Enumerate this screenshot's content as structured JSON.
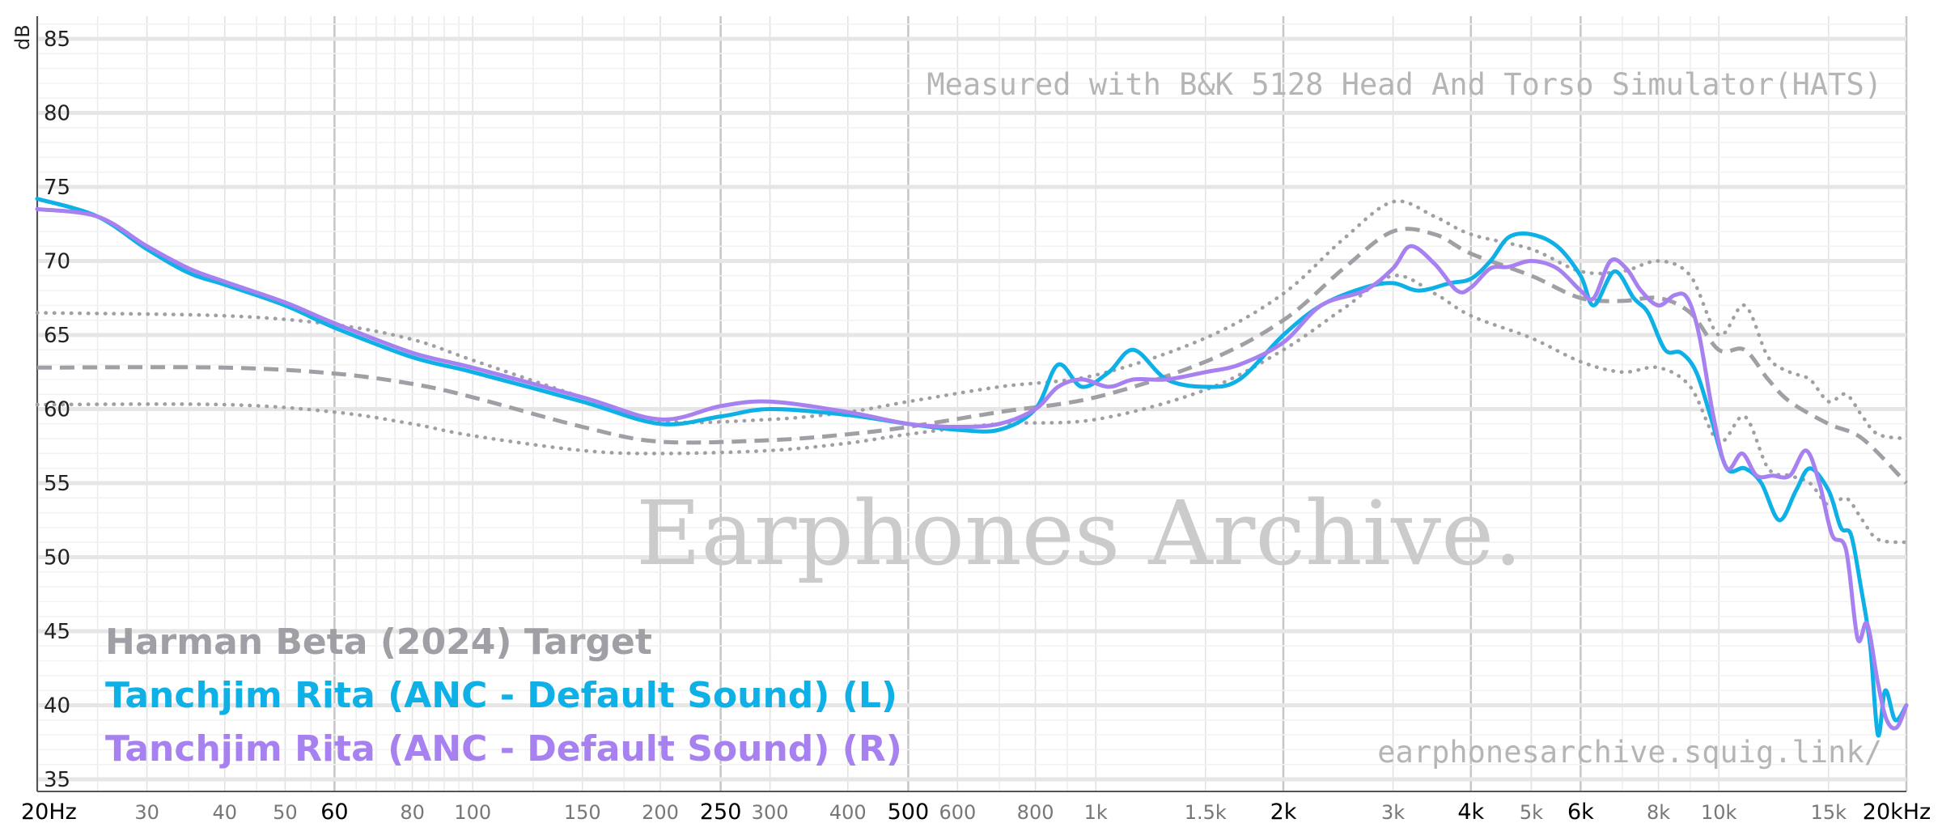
{
  "chart_data": {
    "type": "line",
    "ylabel": "dB",
    "ylim": [
      35,
      86
    ],
    "xlim": [
      20,
      20000
    ],
    "x_scale": "log",
    "grid": true,
    "legend_position": "bottom-left",
    "y_ticks": [
      "35",
      "40",
      "45",
      "50",
      "55",
      "60",
      "65",
      "70",
      "75",
      "80",
      "85"
    ],
    "y_tick_values": [
      35,
      40,
      45,
      50,
      55,
      60,
      65,
      70,
      75,
      80,
      85
    ],
    "x_ticks": [
      {
        "v": 20,
        "label": "20Hz",
        "major": true
      },
      {
        "v": 30,
        "label": "30",
        "major": false
      },
      {
        "v": 40,
        "label": "40",
        "major": false
      },
      {
        "v": 50,
        "label": "50",
        "major": false
      },
      {
        "v": 60,
        "label": "60",
        "major": true
      },
      {
        "v": 80,
        "label": "80",
        "major": false
      },
      {
        "v": 100,
        "label": "100",
        "major": false
      },
      {
        "v": 150,
        "label": "150",
        "major": false
      },
      {
        "v": 200,
        "label": "200",
        "major": false
      },
      {
        "v": 250,
        "label": "250",
        "major": true
      },
      {
        "v": 300,
        "label": "300",
        "major": false
      },
      {
        "v": 400,
        "label": "400",
        "major": false
      },
      {
        "v": 500,
        "label": "500",
        "major": true
      },
      {
        "v": 600,
        "label": "600",
        "major": false
      },
      {
        "v": 800,
        "label": "800",
        "major": false
      },
      {
        "v": 1000,
        "label": "1k",
        "major": false
      },
      {
        "v": 1500,
        "label": "1.5k",
        "major": false
      },
      {
        "v": 2000,
        "label": "2k",
        "major": true
      },
      {
        "v": 3000,
        "label": "3k",
        "major": false
      },
      {
        "v": 4000,
        "label": "4k",
        "major": true
      },
      {
        "v": 5000,
        "label": "5k",
        "major": false
      },
      {
        "v": 6000,
        "label": "6k",
        "major": true
      },
      {
        "v": 8000,
        "label": "8k",
        "major": false
      },
      {
        "v": 10000,
        "label": "10k",
        "major": false
      },
      {
        "v": 15000,
        "label": "15k",
        "major": false
      },
      {
        "v": 20000,
        "label": "20kHz",
        "major": true
      }
    ],
    "annotations": {
      "measurement_note": "Measured with B&K 5128 Head And Torso Simulator(HATS)",
      "watermark": "Earphones Archive.",
      "site": "earphonesarchive.squig.link/"
    },
    "series": [
      {
        "name": "Harman Beta (2024) Target",
        "color": "#a09fa5",
        "style": "dashed",
        "x": [
          20,
          40,
          60,
          80,
          100,
          150,
          200,
          300,
          400,
          500,
          700,
          1000,
          1500,
          2000,
          2500,
          3000,
          3500,
          4000,
          5000,
          6000,
          7000,
          8000,
          9000,
          10000,
          11000,
          12000,
          13000,
          15000,
          17000,
          20000
        ],
        "y": [
          62.8,
          62.8,
          62.4,
          61.7,
          60.8,
          58.8,
          57.8,
          57.9,
          58.3,
          58.8,
          59.8,
          60.8,
          63.2,
          66.0,
          69.5,
          72.0,
          71.8,
          70.5,
          69.0,
          67.5,
          67.3,
          67.5,
          66.5,
          64.0,
          64.0,
          62.0,
          60.5,
          59.0,
          58.0,
          55.0
        ]
      },
      {
        "name": "",
        "color": "#a09fa5",
        "style": "dotted",
        "x": [
          20,
          40,
          60,
          80,
          100,
          150,
          200,
          300,
          400,
          500,
          700,
          1000,
          1500,
          2000,
          2500,
          3000,
          3500,
          4000,
          5000,
          6000,
          7000,
          8000,
          9000,
          10000,
          11000,
          12000,
          13000,
          14000,
          15000,
          16000,
          17000,
          18000,
          20000
        ],
        "y": [
          66.5,
          66.3,
          65.7,
          64.7,
          63.3,
          60.8,
          59.2,
          59.3,
          59.8,
          60.5,
          61.5,
          62.3,
          64.8,
          67.8,
          71.5,
          74.0,
          73.0,
          71.8,
          70.8,
          69.3,
          69.3,
          70.0,
          69.0,
          65.0,
          67.0,
          63.5,
          62.5,
          62.0,
          60.5,
          61.0,
          59.5,
          58.3,
          58.0
        ]
      },
      {
        "name": "",
        "color": "#a09fa5",
        "style": "dotted",
        "x": [
          20,
          40,
          60,
          80,
          100,
          150,
          200,
          300,
          400,
          500,
          700,
          1000,
          1500,
          2000,
          2500,
          3000,
          3500,
          4000,
          5000,
          6000,
          7000,
          8000,
          9000,
          10000,
          11000,
          12000,
          13000,
          14000,
          15000,
          16000,
          17000,
          18000,
          20000
        ],
        "y": [
          60.3,
          60.3,
          59.8,
          59.0,
          58.2,
          57.2,
          57.0,
          57.2,
          57.7,
          58.3,
          59.0,
          59.3,
          61.3,
          64.0,
          66.8,
          69.0,
          67.8,
          66.3,
          64.8,
          63.2,
          62.5,
          62.8,
          61.5,
          57.8,
          59.5,
          56.0,
          55.5,
          55.0,
          53.5,
          54.0,
          52.5,
          51.2,
          51.0
        ]
      },
      {
        "name": "Tanchjim Rita (ANC - Default Sound) (L)",
        "color": "#0eb0e6",
        "style": "solid",
        "x": [
          20,
          25,
          30,
          35,
          40,
          50,
          60,
          80,
          100,
          150,
          200,
          250,
          300,
          400,
          500,
          600,
          700,
          800,
          870,
          950,
          1050,
          1150,
          1300,
          1500,
          1700,
          2000,
          2300,
          2700,
          3000,
          3300,
          3700,
          4000,
          4300,
          4600,
          5000,
          5500,
          6000,
          6300,
          6800,
          7300,
          7700,
          8200,
          8700,
          9200,
          9700,
          10300,
          11000,
          11700,
          12500,
          13300,
          14000,
          15000,
          15700,
          16300,
          16900,
          17500,
          18000,
          18500,
          19200,
          20000
        ],
        "y": [
          74.2,
          73.0,
          70.8,
          69.2,
          68.4,
          67.0,
          65.5,
          63.5,
          62.5,
          60.5,
          59.0,
          59.5,
          60.0,
          59.6,
          59.0,
          58.6,
          58.6,
          60.0,
          63.0,
          61.5,
          62.5,
          64.0,
          62.0,
          61.5,
          62.0,
          65.0,
          67.0,
          68.2,
          68.5,
          68.0,
          68.5,
          68.8,
          70.0,
          71.6,
          71.8,
          71.0,
          69.0,
          67.0,
          69.3,
          67.5,
          66.5,
          64.0,
          63.8,
          62.5,
          59.5,
          56.0,
          56.0,
          55.0,
          52.5,
          54.5,
          56.0,
          54.5,
          52.0,
          51.5,
          48.0,
          44.0,
          38.0,
          41.0,
          39.0,
          40.0
        ]
      },
      {
        "name": "Tanchjim Rita (ANC - Default Sound) (R)",
        "color": "#a781f0",
        "style": "solid",
        "x": [
          20,
          25,
          30,
          35,
          40,
          50,
          60,
          80,
          100,
          150,
          200,
          250,
          300,
          400,
          500,
          600,
          700,
          800,
          870,
          950,
          1050,
          1150,
          1300,
          1500,
          1700,
          2000,
          2300,
          2700,
          3000,
          3200,
          3500,
          3800,
          4000,
          4300,
          4600,
          5000,
          5500,
          6000,
          6300,
          6700,
          7100,
          7500,
          8000,
          8500,
          8900,
          9300,
          9800,
          10300,
          10900,
          11500,
          12200,
          13000,
          13800,
          14500,
          15200,
          16000,
          16700,
          17300,
          18000,
          18600,
          19300,
          20000
        ],
        "y": [
          73.5,
          73.0,
          71.0,
          69.5,
          68.6,
          67.2,
          65.8,
          63.8,
          62.8,
          60.8,
          59.3,
          60.2,
          60.5,
          59.8,
          59.0,
          58.8,
          59.0,
          60.0,
          61.5,
          62.0,
          61.5,
          62.0,
          62.0,
          62.5,
          63.0,
          64.5,
          67.0,
          68.0,
          69.5,
          71.0,
          69.8,
          68.0,
          68.2,
          69.5,
          69.6,
          70.0,
          69.5,
          68.0,
          67.5,
          70.0,
          69.5,
          68.0,
          67.0,
          67.7,
          67.5,
          65.0,
          59.5,
          56.0,
          57.0,
          55.5,
          55.5,
          55.5,
          57.2,
          55.0,
          51.5,
          50.5,
          44.5,
          45.5,
          41.5,
          39.0,
          38.5,
          40.0
        ]
      }
    ]
  }
}
